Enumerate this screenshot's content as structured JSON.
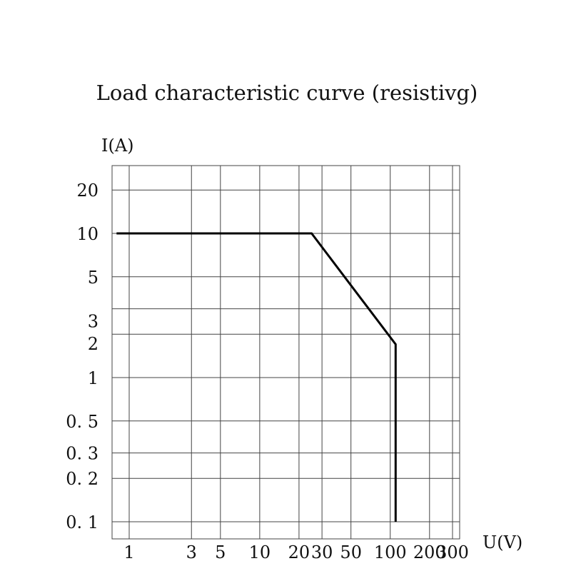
{
  "chart_data": {
    "type": "line",
    "title": "Load characteristic curve (resistivg)",
    "xlabel": "U(V)",
    "ylabel": "I(A)",
    "x_scale": "log",
    "y_scale": "log",
    "grid": true,
    "legend": "none",
    "x_ticks": [
      {
        "value": 1,
        "label": "1"
      },
      {
        "value": 3,
        "label": "3"
      },
      {
        "value": 5,
        "label": "5"
      },
      {
        "value": 10,
        "label": "10"
      },
      {
        "value": 20,
        "label": "20"
      },
      {
        "value": 30,
        "label": "30"
      },
      {
        "value": 50,
        "label": "50"
      },
      {
        "value": 100,
        "label": "100"
      },
      {
        "value": 200,
        "label": "200"
      },
      {
        "value": 300,
        "label": "300"
      }
    ],
    "y_ticks": [
      {
        "value": 20,
        "label": "20"
      },
      {
        "value": 10,
        "label": "10"
      },
      {
        "value": 5,
        "label": "5"
      },
      {
        "value": 3,
        "label": "3"
      },
      {
        "value": 2,
        "label": "2"
      },
      {
        "value": 1,
        "label": "1"
      },
      {
        "value": 0.5,
        "label": "0. 5"
      },
      {
        "value": 0.3,
        "label": "0. 3"
      },
      {
        "value": 0.2,
        "label": "0. 2"
      },
      {
        "value": 0.1,
        "label": "0. 1"
      }
    ],
    "series": [
      {
        "x": [
          0.8,
          25,
          110,
          110
        ],
        "y": [
          10,
          10,
          1.7,
          0.1
        ]
      }
    ]
  }
}
